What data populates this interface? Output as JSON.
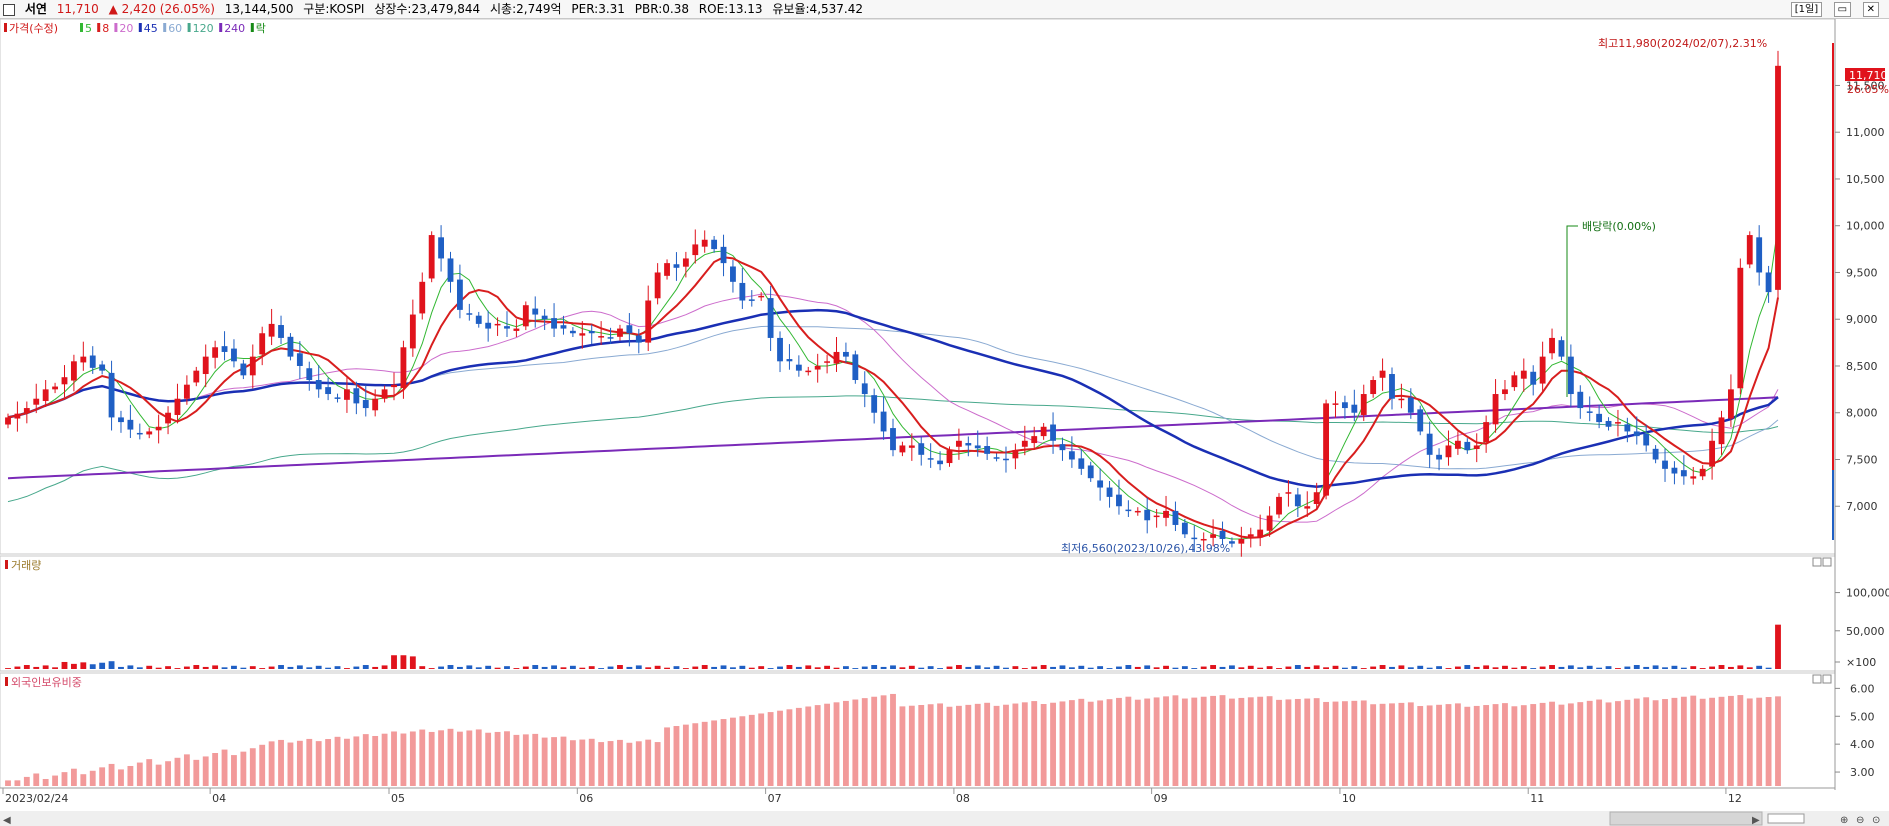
{
  "header": {
    "name": "서연",
    "price": "11,710",
    "change": "▲ 2,420 (26.05%)",
    "volume": "13,144,500",
    "market": "구분:KOSPI",
    "shares": "상장수:23,479,844",
    "cap": "시총:2,749억",
    "per": "PER:3.31",
    "pbr": "PBR:0.38",
    "roe": "ROE:13.13",
    "float": "유보율:4,537.42",
    "period": "[1일]"
  },
  "colors": {
    "up": "#e0131c",
    "down": "#1f5fc4",
    "ma5": "#33b833",
    "ma8": "#d81e1e",
    "ma20": "#cc6ccc",
    "ma45": "#1a2fb4",
    "ma60": "#8aaad2",
    "ma120": "#48a88c",
    "ma240": "#7a2ab8"
  },
  "price_panel": {
    "legend": [
      {
        "label": "가격(수정)",
        "color": "#d01818"
      },
      {
        "label": "5",
        "color": "#33b833"
      },
      {
        "label": "8",
        "color": "#d81e1e"
      },
      {
        "label": "20",
        "color": "#cc6ccc"
      },
      {
        "label": "45",
        "color": "#1a2fb4"
      },
      {
        "label": "60",
        "color": "#8aaad2"
      },
      {
        "label": "120",
        "color": "#48a88c"
      },
      {
        "label": "240",
        "color": "#7a2ab8"
      },
      {
        "label": "락",
        "color": "#158a15"
      }
    ],
    "y_ticks": [
      "7,000",
      "7,500",
      "8,000",
      "8,500",
      "9,000",
      "9,500",
      "10,000",
      "10,500",
      "11,000",
      "11,500"
    ],
    "last_price_tag": "11,710",
    "last_pct_tag": "26.05%",
    "high_note": "최고11,980(2024/02/07),2.31%",
    "low_note": "최저6,560(2023/10/26),43.98%",
    "dividend_note": "배당락(0.00%)"
  },
  "volume_panel": {
    "title": "거래량",
    "y_ticks": [
      "100,000",
      "50,000",
      "×100"
    ]
  },
  "foreign_panel": {
    "title": "외국인보유비중",
    "y_ticks": [
      "6.00",
      "5.00",
      "4.00",
      "3.00"
    ]
  },
  "x_axis_labels": [
    "2023/02/24",
    "04",
    "05",
    "06",
    "07",
    "08",
    "09",
    "10",
    "11",
    "12",
    "2024/01",
    "02"
  ],
  "chart_data": {
    "type": "candlestick",
    "title": "서연",
    "price_ylim": [
      6500,
      12200
    ],
    "month_labels": [
      "2023/02/24",
      "04",
      "05",
      "06",
      "07",
      "08",
      "09",
      "10",
      "11",
      "12",
      "2024/01",
      "02"
    ],
    "month_label_index": [
      0,
      22,
      41,
      61,
      81,
      101,
      122,
      142,
      162,
      183,
      201,
      222
    ],
    "close": [
      7950,
      7990,
      8050,
      8150,
      8250,
      8280,
      8380,
      8550,
      8600,
      8480,
      8450,
      7950,
      7900,
      7820,
      7780,
      7800,
      7850,
      8000,
      8150,
      8300,
      8450,
      8600,
      8700,
      8650,
      8550,
      8400,
      8600,
      8850,
      8950,
      8800,
      8600,
      8500,
      8350,
      8250,
      8200,
      8150,
      8250,
      8100,
      8050,
      8150,
      8250,
      8300,
      8700,
      9050,
      9400,
      9900,
      9650,
      9400,
      9100,
      9050,
      8950,
      8900,
      8950,
      8900,
      8900,
      9150,
      9050,
      9000,
      8900,
      8900,
      8850,
      8850,
      8850,
      8820,
      8800,
      8900,
      8850,
      8750,
      9200,
      9500,
      9600,
      9550,
      9650,
      9800,
      9850,
      9750,
      9600,
      9400,
      9200,
      9200,
      9250,
      8800,
      8550,
      8550,
      8450,
      8450,
      8500,
      8550,
      8650,
      8600,
      8350,
      8200,
      8000,
      7800,
      7600,
      7650,
      7650,
      7550,
      7500,
      7450,
      7600,
      7700,
      7650,
      7620,
      7560,
      7520,
      7500,
      7600,
      7700,
      7750,
      7850,
      7700,
      7600,
      7500,
      7400,
      7300,
      7200,
      7100,
      7000,
      6950,
      6950,
      6850,
      6900,
      6950,
      6800,
      6700,
      6650,
      6650,
      6700,
      6650,
      6600,
      6650,
      6700,
      6750,
      6900,
      7100,
      7150,
      7000,
      7000,
      7150,
      8100,
      8100,
      8050,
      8000,
      8200,
      8350,
      8450,
      8150,
      8150,
      8000,
      7800,
      7550,
      7500,
      7650,
      7700,
      7600,
      7650,
      7900,
      8200,
      8250,
      8400,
      8450,
      8300,
      8600,
      8800,
      8600,
      8200,
      8050,
      8000,
      7900,
      7850,
      7900,
      7800,
      7750,
      7650,
      7500,
      7400,
      7350,
      7320,
      7320,
      7400,
      7700,
      7950,
      8250,
      9550,
      9900,
      9500,
      9290,
      11710
    ],
    "volume_x100_highlights": [
      {
        "index": 41,
        "value": 18000
      },
      {
        "index": 42,
        "value": 18000
      },
      {
        "index": 43,
        "value": 16500
      },
      {
        "index": 188,
        "value": 58000
      },
      {
        "index": 191,
        "value": 131445
      }
    ],
    "foreign_pct_ylim": [
      2.5,
      6.3
    ],
    "foreign_pct_range": [
      2.7,
      5.95
    ]
  }
}
